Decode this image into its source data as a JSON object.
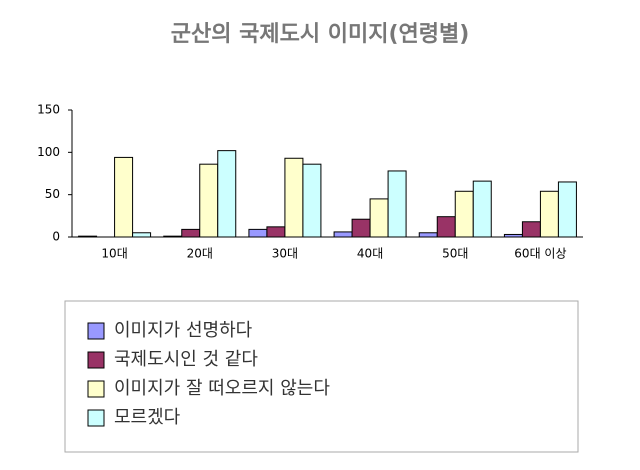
{
  "chart_data": {
    "type": "bar",
    "title": "군산의 국제도시 이미지(연령별)",
    "categories": [
      "10대",
      "20대",
      "30대",
      "40대",
      "50대",
      "60대 이상"
    ],
    "series": [
      {
        "name": "이미지가 선명하다",
        "color": "#9999ff",
        "values": [
          1,
          1,
          9,
          6,
          5,
          3
        ]
      },
      {
        "name": "국제도시인 것 같다",
        "color": "#993366",
        "values": [
          0,
          9,
          12,
          21,
          24,
          18
        ]
      },
      {
        "name": "이미지가 잘 떠오르지 않는다",
        "color": "#ffffcc",
        "values": [
          94,
          86,
          93,
          45,
          54,
          54
        ]
      },
      {
        "name": "모르겠다",
        "color": "#ccffff",
        "values": [
          5,
          102,
          86,
          78,
          66,
          65
        ]
      }
    ],
    "ylim": [
      0,
      150
    ],
    "yticks": [
      0,
      50,
      100,
      150
    ]
  }
}
